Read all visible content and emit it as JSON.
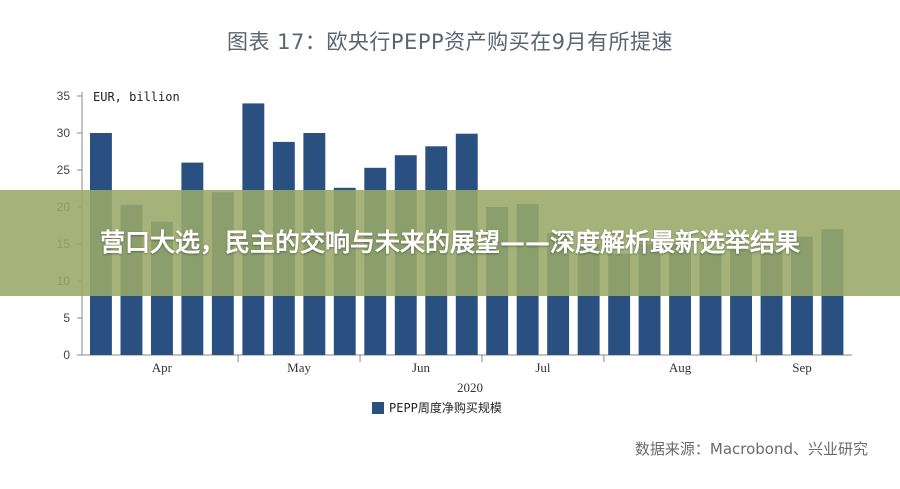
{
  "chart_data": {
    "type": "bar",
    "title": "图表 17：欧央行PEPP资产购买在9月有所提速",
    "ylabel": "EUR, billion",
    "xlabel": "2020",
    "ylim": [
      0,
      35
    ],
    "yticks": [
      0,
      5,
      10,
      15,
      20,
      25,
      30,
      35
    ],
    "month_labels": [
      "Apr",
      "May",
      "Jun",
      "Jul",
      "Aug",
      "Sep"
    ],
    "legend": {
      "position": "bottom",
      "entries": [
        "PEPP周度净购买规模"
      ]
    },
    "grid": false,
    "series": [
      {
        "name": "PEPP周度净购买规模",
        "color": "#2a5082",
        "values": [
          30.0,
          20.3,
          18.0,
          26.0,
          22.0,
          34.0,
          28.8,
          30.0,
          22.6,
          25.3,
          27.0,
          28.2,
          29.9,
          20.0,
          20.4,
          16.5,
          15.0,
          13.7,
          15.0,
          15.0,
          13.8,
          14.2,
          14.2,
          16.0,
          17.0
        ]
      }
    ]
  },
  "banner": {
    "text": "营口大选，民主的交响与未来的展望——深度解析最新选举结果"
  },
  "source": "数据来源：Macrobond、兴业研究"
}
